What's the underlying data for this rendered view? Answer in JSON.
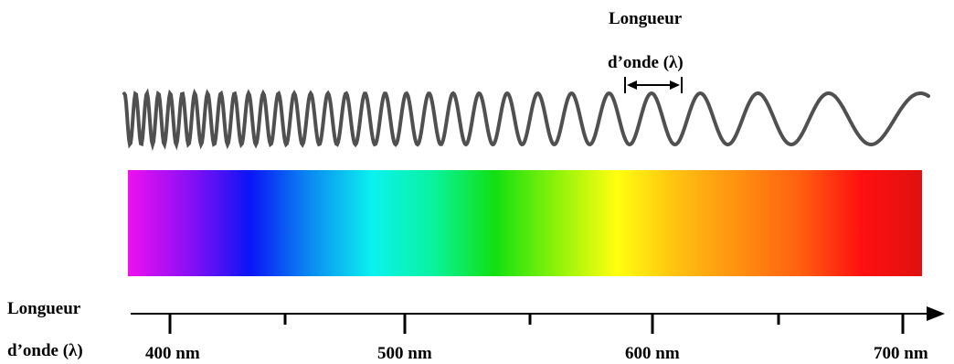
{
  "wavelength_annotation": {
    "line1": "Longueur",
    "line2": "d’onde (λ)"
  },
  "axis": {
    "label_line1": "Longueur",
    "label_line2": "d’onde (λ)",
    "tick_labels": [
      "400 nm",
      "500 nm",
      "600 nm",
      "700 nm"
    ]
  },
  "spectrum": {
    "colors": [
      "#ee10f0",
      "#8b0ff5",
      "#0a15f5",
      "#0a8df2",
      "#0af2ee",
      "#0af29e",
      "#10e010",
      "#8af20a",
      "#ffff10",
      "#ffc010",
      "#ff9010",
      "#ff6010",
      "#ff1010",
      "#e01010"
    ]
  },
  "wave": {
    "stroke_color": "#505050"
  }
}
